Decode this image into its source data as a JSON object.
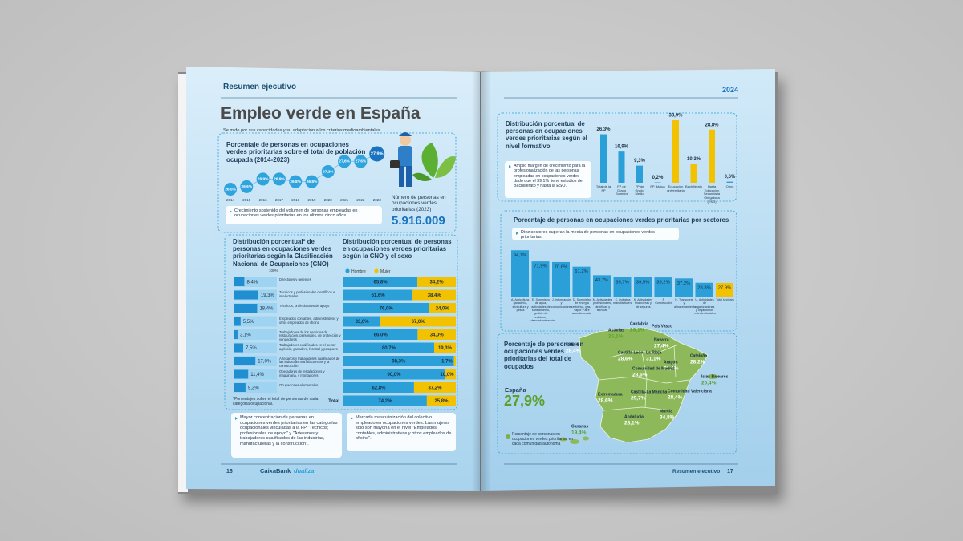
{
  "left_page": {
    "header": "Resumen ejecutivo",
    "title": "Empleo verde en España",
    "subtitle": "Se mide por sus capacidades y su adaptación a los criterios medioambientales",
    "trend_chart": {
      "type": "line",
      "title": "Porcentaje de personas en ocupaciones verdes prioritarias sobre el total de población ocupada (2014-2023)",
      "categories": [
        "2014",
        "2015",
        "2016",
        "2017",
        "2018",
        "2019",
        "2020",
        "2021",
        "2022",
        "2023"
      ],
      "values": [
        26.5,
        26.6,
        26.9,
        26.9,
        26.8,
        26.8,
        27.2,
        27.6,
        27.6,
        27.9
      ],
      "value_labels": [
        "26,5%",
        "26,6%",
        "26,9%",
        "26,9%",
        "26,8%",
        "26,8%",
        "27,2%",
        "27,6%",
        "27,6%",
        "27,9%"
      ],
      "color": "#2fa3de"
    },
    "trend_note": "Crecimiento sostenido del volumen de personas empleadas en ocupaciones verdes prioritarias en los últimos cinco años.",
    "total_label": "Número de personas en ocupaciones verdes prioritarias (2023)",
    "total_value": "5.916.009",
    "cno_chart": {
      "type": "bar",
      "title": "Distribución porcentual* de personas en ocupaciones verdes prioritarias según la Clasificación Nacional de Ocupaciones (CNO)",
      "axis_label": "100%",
      "categories": [
        "Directores y gerentes",
        "Técnicos y profesionales científicos e intelectuales",
        "Técnicos; profesionales de apoyo",
        "Empleados contables, administrativos y otros empleados de oficina",
        "Trabajadores de los servicios de restauración, personales, de protección y vendedores",
        "Trabajadores cualificados en el sector agrícola, ganadero, forestal y pesquero",
        "Artesanos y trabajadores cualificados de las industrias manufactureras y la construcción",
        "Operadores de instalaciones y maquinaria, y montadores",
        "Ocupaciones elementales"
      ],
      "values": [
        8.4,
        19.3,
        18.4,
        5.5,
        3.1,
        7.5,
        17.0,
        11.4,
        9.3
      ],
      "value_labels": [
        "8,4%",
        "19,3%",
        "18,4%",
        "5,5%",
        "3,1%",
        "7,5%",
        "17,0%",
        "11,4%",
        "9,3%"
      ],
      "color": "#1f8fd2",
      "footnote": "*Porcentajes sobre el total de personas de cada categoría ocupacional."
    },
    "sex_chart": {
      "type": "stacked_bar",
      "title": "Distribución porcentual de personas en ocupaciones verdes prioritarias según la CNO y el sexo",
      "total_label": "Total",
      "series": [
        {
          "name": "Hombre",
          "color": "#2a9fd8",
          "values": [
            65.8,
            61.6,
            76.0,
            33.0,
            66.0,
            80.7,
            98.3,
            90.0,
            62.8,
            74.2
          ],
          "value_labels": [
            "65,8%",
            "61,6%",
            "76,0%",
            "33,0%",
            "66,0%",
            "80,7%",
            "98,3%",
            "90,0%",
            "62,8%",
            "74,2%"
          ]
        },
        {
          "name": "Mujer",
          "color": "#f2c200",
          "values": [
            34.2,
            38.4,
            24.0,
            67.0,
            34.0,
            19.3,
            1.7,
            10.0,
            37.2,
            25.8
          ],
          "value_labels": [
            "34,2%",
            "38,4%",
            "24,0%",
            "67,0%",
            "34,0%",
            "19,3%",
            "1,7%",
            "10,0%",
            "37,2%",
            "25,8%"
          ]
        }
      ]
    },
    "notes": [
      "Mayor concentración de personas en ocupaciones verdes prioritarias en las categorías ocupacionales vinculadas a la FP \"Técnicos; profesionales de apoyo\" y \"Artesanos y trabajadores cualificados de las industrias, manufactureras y la construcción\".",
      "Marcada masculinización del colectivo empleado en ocupaciones verdes. Las mujeres solo son mayoría en el nivel \"Empleados contables, administrativos y otros empleados de oficina\"."
    ],
    "footer": {
      "page": "16",
      "brand": "CaixaBank",
      "partner": "dualiza"
    }
  },
  "right_page": {
    "year": "2024",
    "education_chart": {
      "type": "bar",
      "title": "Distribución porcentual de personas en ocupaciones verdes prioritarias según el nivel formativo",
      "note": "Amplio margen de crecimiento para la profesionalización de las personas empleadas en ocupaciones verdes dado que el 39,1% tiene estudios de Bachillerato y hasta la ESO.",
      "categories": [
        "Total de la FP",
        "FP de Grado Superior",
        "FP de Grado Medio",
        "FP Básica",
        "Educación universitaria",
        "Bachillerato",
        "Hasta Educación Secundaria Obligatoria (ESO)",
        "Otros"
      ],
      "values": [
        26.3,
        16.9,
        9.3,
        0.2,
        33.9,
        10.3,
        28.8,
        0.6
      ],
      "value_labels": [
        "26,3%",
        "16,9%",
        "9,3%",
        "0,2%",
        "33,9%",
        "10,3%",
        "28,8%",
        "0,6%"
      ],
      "colors": [
        "#2a9fd8",
        "#2a9fd8",
        "#2a9fd8",
        "#2a9fd8",
        "#f2c200",
        "#f2c200",
        "#f2c200",
        "#2a9fd8"
      ]
    },
    "sector_chart": {
      "type": "bar",
      "title": "Porcentaje de personas en ocupaciones verdes prioritarias por sectores",
      "note": "Diez sectores superan la media de personas en ocupaciones verdes prioritarias.",
      "categories": [
        "A. Agricultura, ganadería, silvicultura y pesca",
        "E. Suministro de agua, actividades de saneamiento, gestión de residuos y descontaminación",
        "J. Información y comunicaciones",
        "D. Suministro de energía eléctrica, gas, vapor y aire acondicionado",
        "M. Actividades profesionales, científicas y técnicas",
        "C. Industria manufacturera",
        "K. Actividades financieras y de seguros",
        "F. Construcción",
        "H. Transporte y almacenamiento",
        "U. Actividades de organizaciones y organismos extraterritoriales",
        "Total sectores"
      ],
      "values": [
        94.7,
        71.9,
        70.6,
        61.2,
        43.7,
        39.7,
        39.5,
        39.2,
        37.2,
        28.3,
        27.9
      ],
      "value_labels": [
        "94,7%",
        "71,9%",
        "70,6%",
        "61,2%",
        "43,7%",
        "39,7%",
        "39,5%",
        "39,2%",
        "37,2%",
        "28,3%",
        "27,9%"
      ],
      "colors": [
        "#2a9fd8",
        "#2a9fd8",
        "#2a9fd8",
        "#2a9fd8",
        "#2a9fd8",
        "#2a9fd8",
        "#2a9fd8",
        "#2a9fd8",
        "#2a9fd8",
        "#2a9fd8",
        "#f2c200"
      ]
    },
    "map": {
      "title": "Porcentaje de personas en ocupaciones verdes prioritarias del total de ocupados",
      "country": "España",
      "country_value": "27,9%",
      "regions": [
        {
          "name": "Asturias",
          "value": "25,1%"
        },
        {
          "name": "Cantabria",
          "value": "26,1%"
        },
        {
          "name": "País Vasco"
        },
        {
          "name": "Galicia",
          "value": "28,4%"
        },
        {
          "name": "Navarra",
          "value": "27,4%"
        },
        {
          "name": "Castilla-León",
          "value": "28,6%"
        },
        {
          "name": "La Rioja",
          "value": "31,1%"
        },
        {
          "name": "Aragón",
          "value": "32,9%"
        },
        {
          "name": "Cataluña",
          "value": "28,2%"
        },
        {
          "name": "Comunidad de Madrid",
          "value": "28,6%"
        },
        {
          "name": "Islas Baleares",
          "value": "20,4%"
        },
        {
          "name": "Extremadura",
          "value": "28,6%"
        },
        {
          "name": "Castilla-La Mancha",
          "value": "29,7%"
        },
        {
          "name": "Comunidad Valenciana",
          "value": "28,4%"
        },
        {
          "name": "Murcia",
          "value": "34,8%"
        },
        {
          "name": "Andalucía",
          "value": "28,1%"
        },
        {
          "name": "Canarias",
          "value": "19,4%"
        }
      ],
      "legend": "Porcentaje de personas en ocupaciones verdes prioritarias en cada comunidad autónoma"
    },
    "footer": {
      "section": "Resumen ejecutivo",
      "page": "17"
    }
  }
}
